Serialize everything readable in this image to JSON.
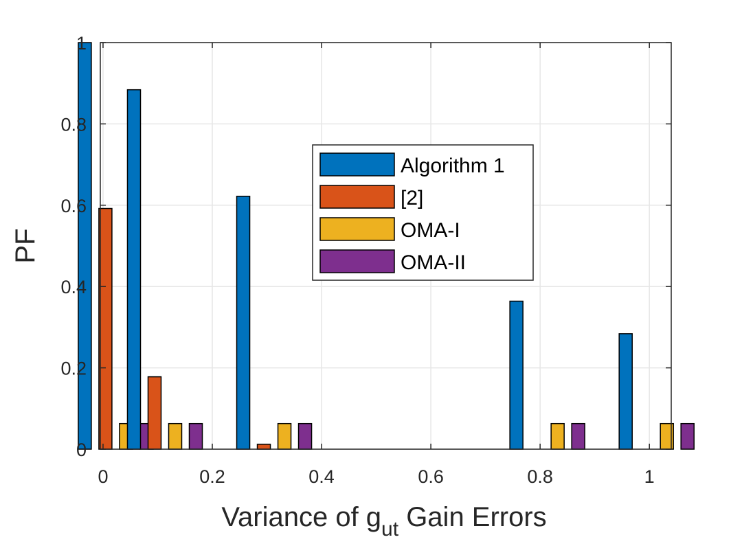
{
  "chart_data": {
    "type": "bar",
    "title": "",
    "xlabel_prefix": "Variance of g",
    "xlabel_subscript": "ut",
    "xlabel_suffix": " Gain Errors",
    "ylabel": "PF",
    "x": [
      0.01,
      0.1,
      0.3,
      0.8,
      1.0
    ],
    "xlim": [
      -0.005,
      1.04
    ],
    "ylim": [
      0,
      1
    ],
    "xticks": [
      0,
      0.2,
      0.4,
      0.6,
      0.8,
      1
    ],
    "xtick_labels": [
      "0",
      "0.2",
      "0.4",
      "0.6",
      "0.8",
      "1"
    ],
    "yticks": [
      0,
      0.2,
      0.4,
      0.6,
      0.8,
      1
    ],
    "ytick_labels": [
      "0",
      "0.2",
      "0.4",
      "0.6",
      "0.8",
      "1"
    ],
    "grid": true,
    "legend_position": "center",
    "series": [
      {
        "name": "Algorithm 1",
        "color": "#0072BD",
        "values": [
          1.0,
          0.884,
          0.622,
          0.364,
          0.284
        ]
      },
      {
        "name": "[2]",
        "color": "#D95319",
        "values": [
          0.592,
          0.178,
          0.012,
          0.0,
          0.0
        ]
      },
      {
        "name": "OMA-I",
        "color": "#EDB120",
        "values": [
          0.063,
          0.063,
          0.063,
          0.063,
          0.063
        ]
      },
      {
        "name": "OMA-II",
        "color": "#7E2F8E",
        "values": [
          0.063,
          0.063,
          0.063,
          0.063,
          0.063
        ]
      }
    ]
  }
}
